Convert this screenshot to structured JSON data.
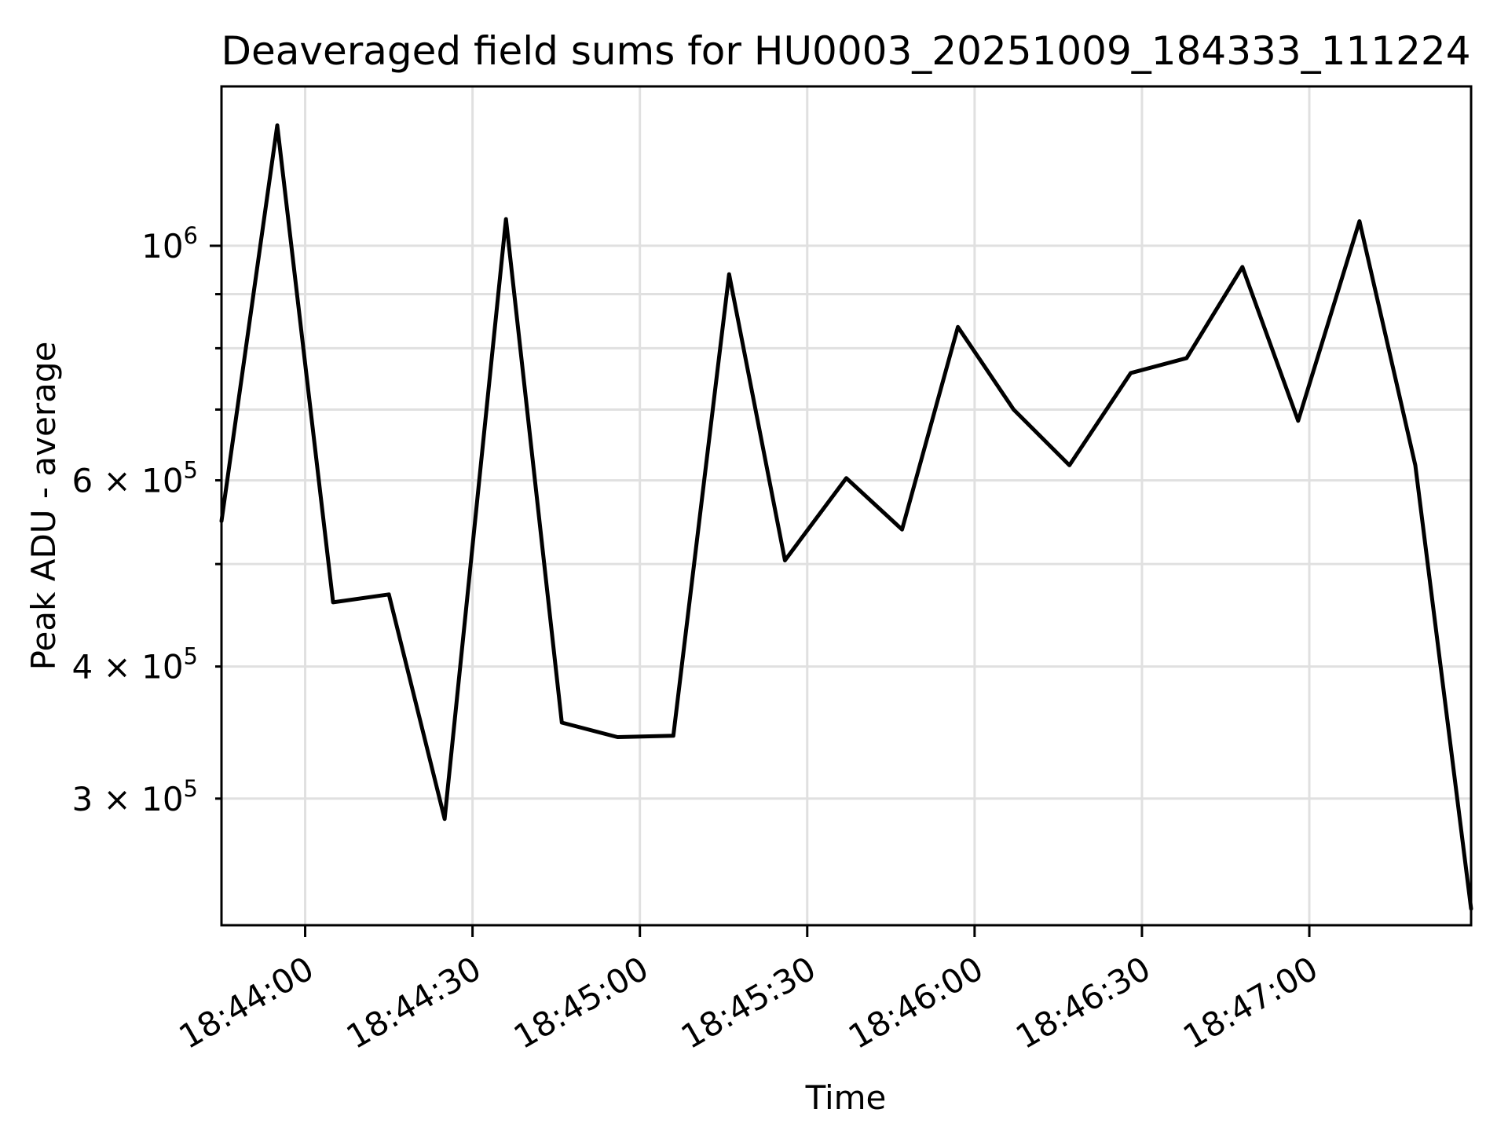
{
  "title": "Deaveraged field sums for HU0003_20251009_184333_111224",
  "chart_data": {
    "type": "line",
    "title": "Deaveraged field sums for HU0003_20251009_184333_111224",
    "xlabel": "Time",
    "ylabel": "Peak ADU - average",
    "y_scale": "log",
    "grid": true,
    "legend": "none",
    "line_color": "#000000",
    "grid_color": "#e0e0e0",
    "xlim": [
      "18:43:45",
      "18:47:29"
    ],
    "ylim": [
      227700,
      1415000
    ],
    "x_ticks": [
      "18:44:00",
      "18:44:30",
      "18:45:00",
      "18:45:30",
      "18:46:00",
      "18:46:30",
      "18:47:00"
    ],
    "y_gridlines": [
      300000,
      400000,
      500000,
      600000,
      700000,
      800000,
      900000,
      1000000
    ],
    "y_ticks": [
      {
        "value": 1000000,
        "coeff": null,
        "exp": "6",
        "major": true
      },
      {
        "value": 600000,
        "coeff": "6",
        "exp": "5",
        "major": false
      },
      {
        "value": 400000,
        "coeff": "4",
        "exp": "5",
        "major": false
      },
      {
        "value": 300000,
        "coeff": "3",
        "exp": "5",
        "major": false
      }
    ],
    "series": [
      {
        "name": "Peak ADU - average",
        "x": [
          "18:43:45",
          "18:43:55",
          "18:44:05",
          "18:44:15",
          "18:44:25",
          "18:44:36",
          "18:44:46",
          "18:44:56",
          "18:45:06",
          "18:45:16",
          "18:45:26",
          "18:45:37",
          "18:45:47",
          "18:45:57",
          "18:46:07",
          "18:46:17",
          "18:46:28",
          "18:46:38",
          "18:46:48",
          "18:46:58",
          "18:47:09",
          "18:47:19",
          "18:47:29"
        ],
        "y": [
          549000,
          1300000,
          460000,
          468000,
          287000,
          1060000,
          354000,
          343000,
          344000,
          940000,
          504000,
          603000,
          539000,
          838000,
          700000,
          620000,
          758000,
          783000,
          955000,
          683000,
          1055000,
          620000,
          236000
        ]
      }
    ]
  }
}
